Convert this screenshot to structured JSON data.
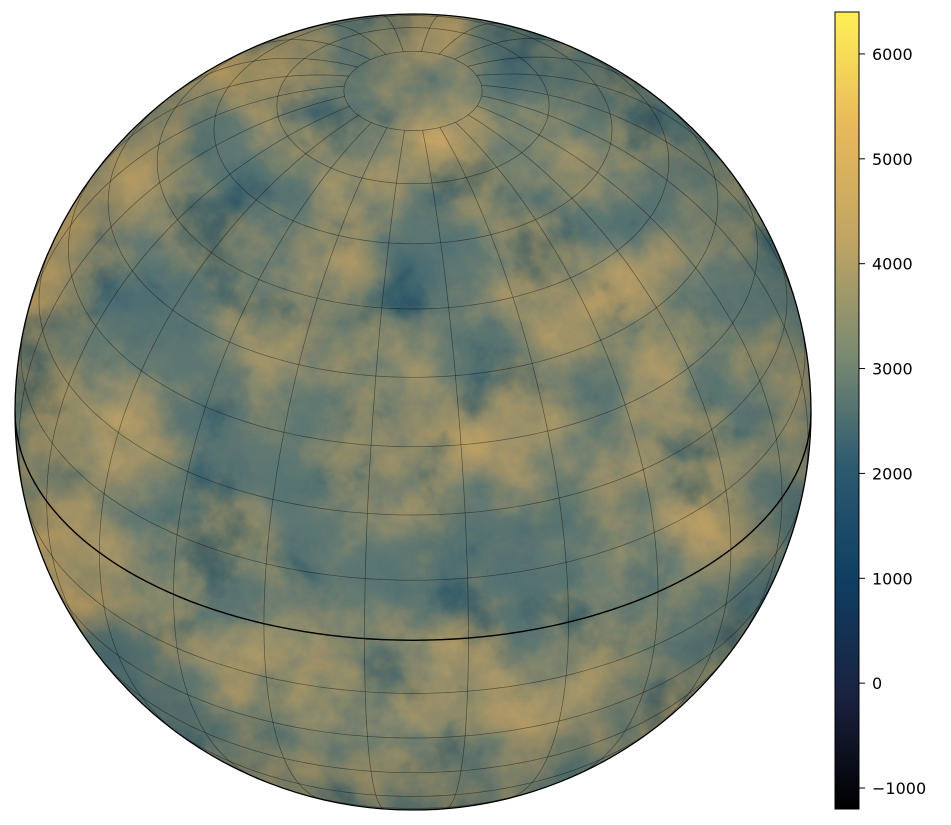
{
  "chart_data": {
    "type": "heatmap",
    "projection": "orthographic globe",
    "graticule": true,
    "title": "",
    "xlabel": "",
    "ylabel": "",
    "colorbar": {
      "vmin": -1200,
      "vmax": 6400,
      "ticks": [
        -1000,
        0,
        1000,
        2000,
        3000,
        4000,
        5000,
        6000
      ],
      "tick_labels": [
        "−1000",
        "0",
        "1000",
        "2000",
        "3000",
        "4000",
        "5000",
        "6000"
      ],
      "colormap_stops": [
        "#000000",
        "#1a2240",
        "#0f3e62",
        "#2c5a6f",
        "#7b8a72",
        "#c0a563",
        "#e8b95b",
        "#fff056"
      ]
    }
  }
}
